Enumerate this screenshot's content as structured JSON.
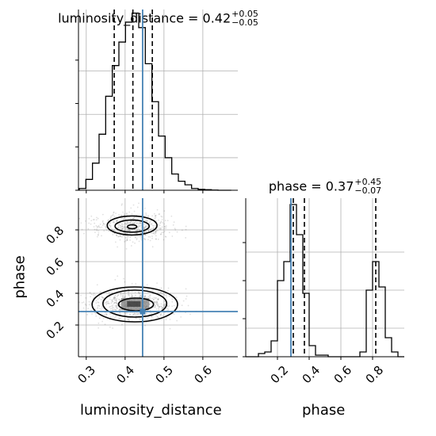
{
  "chart_data": {
    "type": "corner",
    "parameters": [
      "luminosity_distance",
      "phase"
    ],
    "truths": {
      "luminosity_distance": 0.445,
      "phase": 0.285
    },
    "truth_color": "#4682b4",
    "hist_color": "#000000",
    "panels": [
      {
        "id": "hist-luminosity-distance",
        "type": "histogram",
        "parameter": "luminosity_distance",
        "title": {
          "text": "luminosity_distance = 0.42",
          "err_plus": "+0.05",
          "err_minus": "−0.05"
        },
        "xlim": [
          0.28,
          0.69
        ],
        "ylim": [
          0,
          1
        ],
        "bin_edges": [
          0.282,
          0.299,
          0.316,
          0.333,
          0.35,
          0.367,
          0.384,
          0.401,
          0.418,
          0.435,
          0.452,
          0.469,
          0.486,
          0.503,
          0.52,
          0.537,
          0.554,
          0.571,
          0.588,
          0.605,
          0.622,
          0.639,
          0.656,
          0.673
        ],
        "values": [
          0.01,
          0.06,
          0.15,
          0.31,
          0.52,
          0.69,
          0.82,
          0.93,
          0.98,
          0.9,
          0.7,
          0.49,
          0.3,
          0.18,
          0.09,
          0.05,
          0.03,
          0.01,
          0.005,
          0.003,
          0.001,
          0.0,
          0.0
        ],
        "quantiles": [
          0.372,
          0.42,
          0.47
        ],
        "xticks": [
          0.3,
          0.4,
          0.5,
          0.6
        ],
        "xticklabels": []
      },
      {
        "id": "hist-phase",
        "type": "histogram",
        "parameter": "phase",
        "title": {
          "text": "phase = 0.37",
          "err_plus": "+0.45",
          "err_minus": "−0.07"
        },
        "xlim": [
          0.0,
          1.0
        ],
        "ylim": [
          0,
          1
        ],
        "bin_edges": [
          0.0,
          0.04,
          0.08,
          0.12,
          0.16,
          0.2,
          0.24,
          0.28,
          0.32,
          0.36,
          0.4,
          0.44,
          0.48,
          0.52,
          0.56,
          0.6,
          0.64,
          0.68,
          0.72,
          0.76,
          0.8,
          0.84,
          0.88,
          0.92,
          0.96,
          1.0
        ],
        "values": [
          0.0,
          0.0,
          0.02,
          0.03,
          0.1,
          0.48,
          0.6,
          0.96,
          0.77,
          0.4,
          0.07,
          0.01,
          0.01,
          0.0,
          0.0,
          0.0,
          0.0,
          0.0,
          0.03,
          0.42,
          0.6,
          0.44,
          0.12,
          0.03,
          0.0
        ],
        "quantiles": [
          0.3,
          0.37,
          0.82
        ],
        "xticks": [
          0.2,
          0.4,
          0.6,
          0.8
        ],
        "xticklabels": [
          "0.2",
          "0.4",
          "0.6",
          "0.8"
        ],
        "xlabel": "phase"
      },
      {
        "id": "scatter-luminosity-distance-vs-phase",
        "type": "2d-density",
        "x": "luminosity_distance",
        "y": "phase",
        "xlim": [
          0.28,
          0.69
        ],
        "ylim": [
          0.0,
          1.0
        ],
        "xticks": [
          0.3,
          0.4,
          0.5,
          0.6
        ],
        "xticklabels": [
          "0.3",
          "0.4",
          "0.5",
          "0.6"
        ],
        "yticks": [
          0.2,
          0.4,
          0.6,
          0.8
        ],
        "yticklabels": [
          "0.2",
          "0.4",
          "0.6",
          "0.8"
        ],
        "xlabel": "luminosity_distance",
        "ylabel": "phase",
        "modes": [
          {
            "cx": 0.418,
            "cy": 0.82,
            "sx": 0.042,
            "sy": 0.042,
            "weight": 0.42
          },
          {
            "cx": 0.42,
            "cy": 0.33,
            "sx": 0.045,
            "sy": 0.045,
            "weight": 0.58
          }
        ],
        "contours": [
          {
            "cx": 0.418,
            "cy": 0.828,
            "rx": 0.064,
            "ry": 0.06,
            "level": "outer"
          },
          {
            "cx": 0.418,
            "cy": 0.824,
            "rx": 0.044,
            "ry": 0.038,
            "level": "middle"
          },
          {
            "cx": 0.418,
            "cy": 0.82,
            "rx": 0.012,
            "ry": 0.012,
            "level": "inner"
          },
          {
            "cx": 0.425,
            "cy": 0.33,
            "rx": 0.11,
            "ry": 0.11,
            "level": "outer"
          },
          {
            "cx": 0.425,
            "cy": 0.335,
            "rx": 0.082,
            "ry": 0.085,
            "level": "middle"
          },
          {
            "cx": 0.428,
            "cy": 0.33,
            "rx": 0.045,
            "ry": 0.04,
            "level": "inner"
          }
        ],
        "density_blocks": [
          {
            "x0": 0.39,
            "x1": 0.462,
            "y0": 0.295,
            "y1": 0.37,
            "shade": "#808080"
          },
          {
            "x0": 0.405,
            "x1": 0.44,
            "y0": 0.315,
            "y1": 0.35,
            "shade": "#303030"
          }
        ]
      }
    ]
  }
}
